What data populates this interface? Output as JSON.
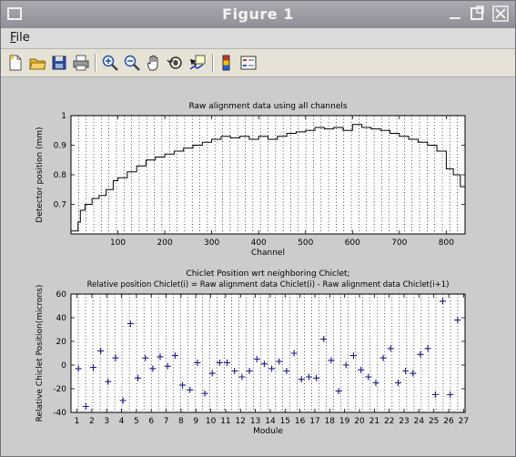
{
  "window": {
    "title": "Figure 1"
  },
  "menu": {
    "file_label": "File",
    "file_label_rest": "ile",
    "file_mnemonic": "F"
  },
  "toolbar": {
    "tools": [
      "new-figure-icon",
      "open-file-icon",
      "save-icon",
      "print-icon",
      "zoom-in-icon",
      "zoom-out-icon",
      "pan-hand-icon",
      "rotate-3d-icon",
      "data-cursor-icon",
      "colorbar-icon",
      "legend-icon"
    ]
  },
  "chart_data": [
    {
      "type": "line",
      "title": "Raw alignment data using all channels",
      "xlabel": "Channel",
      "ylabel": "Detector position (mm)",
      "xlim": [
        0,
        840
      ],
      "ylim": [
        0.6,
        1.0
      ],
      "xticks": [
        100,
        200,
        300,
        400,
        500,
        600,
        700,
        800
      ],
      "yticks": [
        0.7,
        0.8,
        0.9,
        1
      ],
      "ytick_labels": [
        "0.7",
        "0.8",
        "0.9",
        "1"
      ],
      "grid": "vertical dotted",
      "x": [
        0,
        15,
        20,
        30,
        45,
        60,
        75,
        90,
        100,
        120,
        140,
        160,
        180,
        200,
        220,
        240,
        260,
        280,
        300,
        320,
        340,
        360,
        380,
        400,
        420,
        440,
        460,
        480,
        500,
        520,
        540,
        560,
        580,
        600,
        620,
        640,
        660,
        680,
        700,
        720,
        740,
        760,
        780,
        800,
        815,
        830,
        840
      ],
      "y": [
        0.61,
        0.64,
        0.68,
        0.7,
        0.72,
        0.73,
        0.75,
        0.78,
        0.79,
        0.81,
        0.83,
        0.85,
        0.86,
        0.87,
        0.88,
        0.89,
        0.9,
        0.91,
        0.92,
        0.93,
        0.925,
        0.93,
        0.92,
        0.93,
        0.92,
        0.93,
        0.94,
        0.945,
        0.95,
        0.96,
        0.955,
        0.96,
        0.95,
        0.97,
        0.96,
        0.955,
        0.95,
        0.94,
        0.93,
        0.92,
        0.91,
        0.9,
        0.88,
        0.82,
        0.8,
        0.76,
        0.75
      ]
    },
    {
      "type": "scatter",
      "title": "Chiclet Position wrt neighboring Chiclet;",
      "subtitle": "Relative position Chiclet(i) = Raw alignment data Chiclet(i) - Raw alignment data Chiclet(i+1)",
      "xlabel": "Module",
      "ylabel": "Relative Chiclet Position(microns)",
      "xlim": [
        0.6,
        27.1
      ],
      "ylim": [
        -40,
        60
      ],
      "xticks": [
        1,
        2,
        3,
        4,
        5,
        6,
        7,
        8,
        9,
        10,
        11,
        12,
        13,
        14,
        15,
        16,
        17,
        18,
        19,
        20,
        21,
        22,
        23,
        24,
        25,
        26,
        27
      ],
      "yticks": [
        -40,
        -20,
        0,
        20,
        40,
        60
      ],
      "grid": "vertical dotted",
      "marker": "+",
      "color": "#1c1c8c",
      "x": [
        1.1,
        1.6,
        2.1,
        2.6,
        3.1,
        3.6,
        4.1,
        4.6,
        5.1,
        5.6,
        6.1,
        6.6,
        7.1,
        7.6,
        8.1,
        8.6,
        9.1,
        9.6,
        10.1,
        10.6,
        11.1,
        11.6,
        12.1,
        12.6,
        13.1,
        13.6,
        14.1,
        14.6,
        15.1,
        15.6,
        16.1,
        16.6,
        17.1,
        17.6,
        18.1,
        18.6,
        19.1,
        19.6,
        20.1,
        20.6,
        21.1,
        21.6,
        22.1,
        22.6,
        23.1,
        23.6,
        24.1,
        24.6,
        25.1,
        25.6,
        26.1,
        26.6
      ],
      "y": [
        -3,
        -35,
        -2,
        12,
        -14,
        6,
        -30,
        35,
        -11,
        6,
        -3,
        7,
        -1,
        8,
        -17,
        -21,
        2,
        -24,
        -7,
        2,
        2,
        -5,
        -10,
        -5,
        5,
        1,
        -3,
        3,
        -5,
        10,
        -12,
        -10,
        -11,
        22,
        4,
        -22,
        0,
        8,
        -4,
        -10,
        -15,
        6,
        14,
        -15,
        -5,
        -7,
        9,
        14,
        -25,
        54,
        -25,
        38
      ]
    }
  ]
}
